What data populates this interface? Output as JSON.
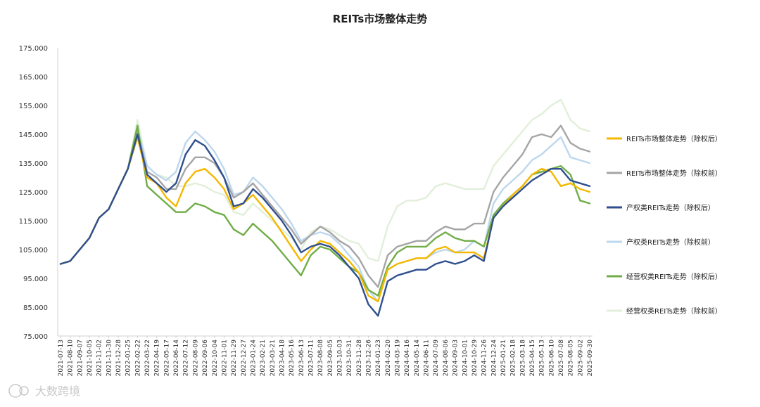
{
  "chart_data": {
    "type": "line",
    "title": "REITs市场整体走势",
    "xlabel": "",
    "ylabel": "",
    "ylim": [
      75,
      175
    ],
    "yticks": [
      "75.000",
      "85.000",
      "95.000",
      "105.000",
      "115.000",
      "125.000",
      "135.000",
      "145.000",
      "155.000",
      "165.000",
      "175.000"
    ],
    "x": [
      "2021-07-13",
      "2021-08-10",
      "2021-09-07",
      "2021-10-05",
      "2021-11-02",
      "2021-11-30",
      "2021-12-28",
      "2022-01-25",
      "2022-02-22",
      "2022-03-22",
      "2022-04-19",
      "2022-05-17",
      "2022-06-14",
      "2022-07-12",
      "2022-08-09",
      "2022-09-06",
      "2022-10-04",
      "2022-11-01",
      "2022-11-29",
      "2022-12-27",
      "2023-01-24",
      "2023-02-21",
      "2023-03-21",
      "2023-04-18",
      "2023-05-16",
      "2023-06-13",
      "2023-07-11",
      "2023-08-08",
      "2023-09-05",
      "2023-10-03",
      "2023-10-31",
      "2023-11-28",
      "2023-12-26",
      "2024-01-23",
      "2024-02-20",
      "2024-03-19",
      "2024-04-16",
      "2024-05-14",
      "2024-06-11",
      "2024-07-09",
      "2024-08-06",
      "2024-09-03",
      "2024-10-01",
      "2024-10-29",
      "2024-11-26",
      "2024-12-24",
      "2025-01-21",
      "2025-02-18",
      "2025-03-18",
      "2025-04-15",
      "2025-05-13",
      "2025-06-10",
      "2025-07-08",
      "2025-08-05",
      "2025-09-02",
      "2025-09-30"
    ],
    "grid": false,
    "legend_position": "right",
    "series": [
      {
        "name": "REITs市场整体走势（除权后）",
        "color": "#f5b800",
        "values": [
          100,
          101,
          105,
          109,
          116,
          119,
          126,
          133,
          144,
          130,
          128,
          123,
          120,
          128,
          132,
          133,
          130,
          126,
          119,
          121,
          124,
          120,
          116,
          111,
          106,
          101,
          105,
          108,
          107,
          104,
          101,
          97,
          89,
          87,
          98,
          100,
          101,
          102,
          102,
          105,
          106,
          104,
          104,
          104,
          102,
          116,
          120,
          124,
          127,
          131,
          133,
          132,
          127,
          128,
          126,
          125
        ]
      },
      {
        "name": "REITs市场整体走势（除权前）",
        "color": "#a5a5a5",
        "values": [
          100,
          101,
          105,
          109,
          116,
          119,
          126,
          133,
          146,
          132,
          130,
          126,
          126,
          133,
          137,
          137,
          135,
          130,
          123,
          125,
          128,
          124,
          120,
          116,
          112,
          107,
          110,
          113,
          111,
          108,
          106,
          102,
          96,
          92,
          103,
          106,
          107,
          108,
          108,
          111,
          113,
          112,
          112,
          114,
          114,
          125,
          130,
          134,
          138,
          144,
          145,
          144,
          148,
          142,
          140,
          139
        ]
      },
      {
        "name": "产权类REITs走势（除权后）",
        "color": "#2f4f8f",
        "values": [
          100,
          101,
          105,
          109,
          116,
          119,
          126,
          133,
          145,
          131,
          128,
          125,
          128,
          138,
          143,
          141,
          136,
          130,
          120,
          121,
          126,
          123,
          119,
          115,
          110,
          104,
          106,
          107,
          106,
          103,
          99,
          95,
          86,
          82,
          94,
          96,
          97,
          98,
          98,
          100,
          101,
          100,
          101,
          103,
          101,
          116,
          120,
          123,
          126,
          129,
          131,
          133,
          133,
          129,
          128,
          127
        ]
      },
      {
        "name": "产权类REITs走势（除权前）",
        "color": "#bdd7ee",
        "values": [
          100,
          101,
          105,
          109,
          116,
          119,
          126,
          133,
          147,
          134,
          131,
          129,
          132,
          142,
          146,
          143,
          139,
          133,
          124,
          125,
          130,
          127,
          123,
          119,
          114,
          108,
          110,
          111,
          110,
          107,
          103,
          99,
          91,
          87,
          98,
          100,
          101,
          102,
          102,
          104,
          105,
          104,
          105,
          108,
          106,
          121,
          126,
          129,
          132,
          136,
          138,
          141,
          144,
          137,
          136,
          135
        ]
      },
      {
        "name": "经营权类REITs走势（除权后）",
        "color": "#70ad47",
        "values": [
          100,
          101,
          105,
          109,
          116,
          119,
          126,
          133,
          148,
          127,
          124,
          121,
          118,
          118,
          121,
          120,
          118,
          117,
          112,
          110,
          114,
          111,
          108,
          104,
          100,
          96,
          103,
          106,
          105,
          102,
          99,
          97,
          91,
          89,
          99,
          104,
          106,
          106,
          106,
          109,
          111,
          109,
          108,
          108,
          106,
          117,
          121,
          124,
          127,
          131,
          132,
          133,
          134,
          131,
          122,
          121
        ]
      },
      {
        "name": "经营权类REITs走势（除权前）",
        "color": "#e2efda",
        "values": [
          100,
          101,
          105,
          109,
          116,
          119,
          126,
          133,
          150,
          134,
          131,
          130,
          127,
          127,
          128,
          127,
          125,
          124,
          118,
          117,
          121,
          118,
          115,
          112,
          109,
          105,
          111,
          113,
          112,
          110,
          108,
          107,
          102,
          101,
          113,
          120,
          122,
          122,
          123,
          127,
          128,
          127,
          126,
          126,
          126,
          134,
          138,
          142,
          146,
          150,
          152,
          155,
          157,
          150,
          147,
          146
        ]
      }
    ]
  },
  "watermark": "大数跨境"
}
